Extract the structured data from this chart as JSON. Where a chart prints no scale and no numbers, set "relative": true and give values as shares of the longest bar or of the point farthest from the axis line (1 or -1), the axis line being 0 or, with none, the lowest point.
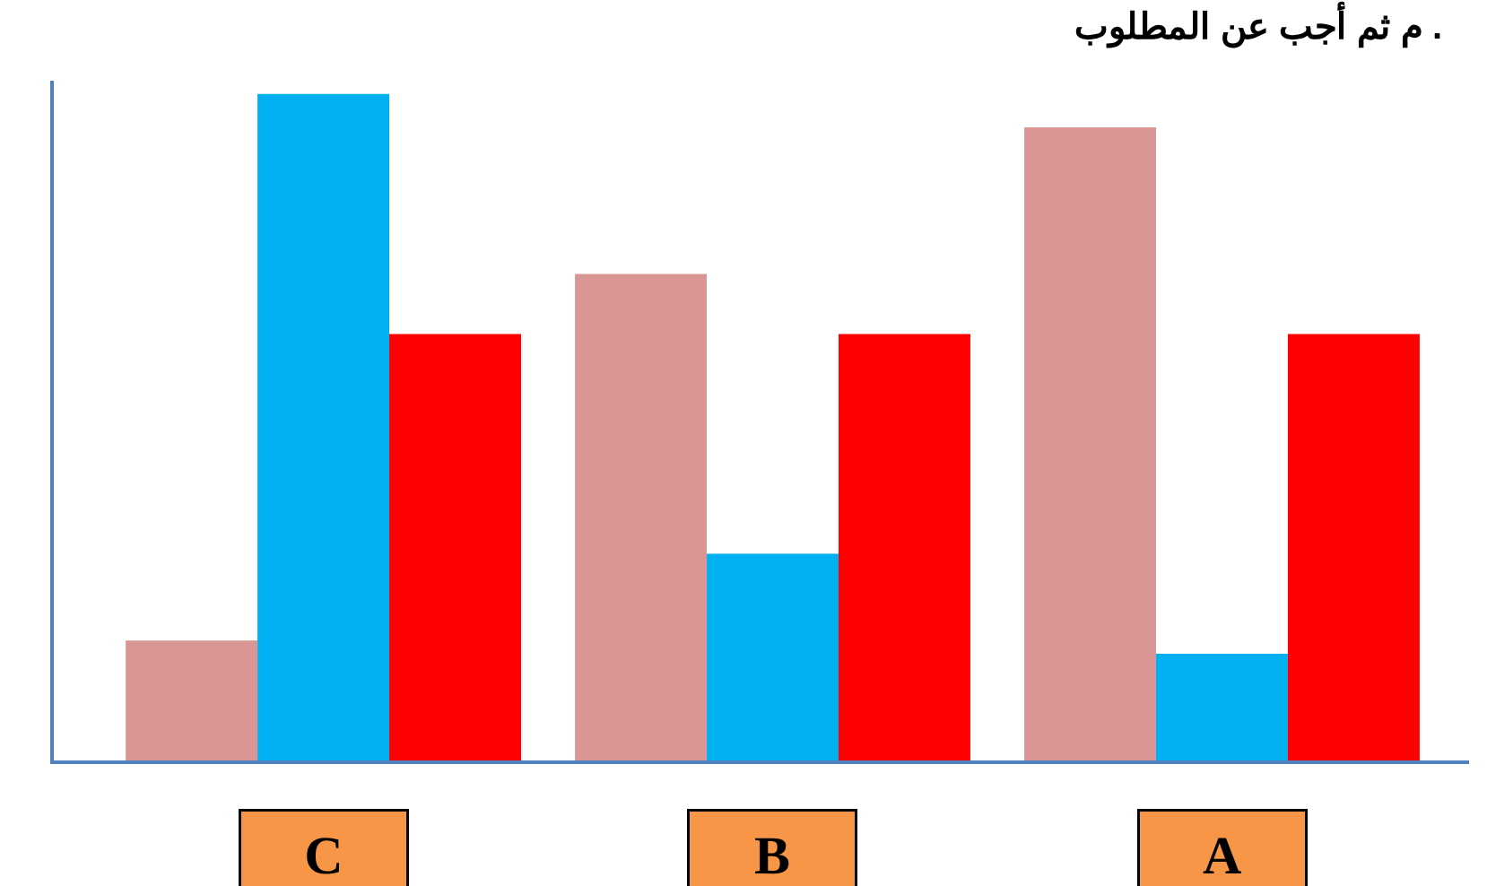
{
  "chart_data": {
    "type": "bar",
    "title": "م ثم أجب عن المطلوب .",
    "relative": true,
    "categories": [
      "C",
      "B",
      "A"
    ],
    "series": [
      {
        "color": "#d99694",
        "values": [
          0.18,
          0.73,
          0.95
        ]
      },
      {
        "color": "#00b0f0",
        "values": [
          1,
          0.31,
          0.16
        ]
      },
      {
        "color": "#ff0000",
        "values": [
          0.64,
          0.64,
          0.64
        ]
      }
    ]
  }
}
